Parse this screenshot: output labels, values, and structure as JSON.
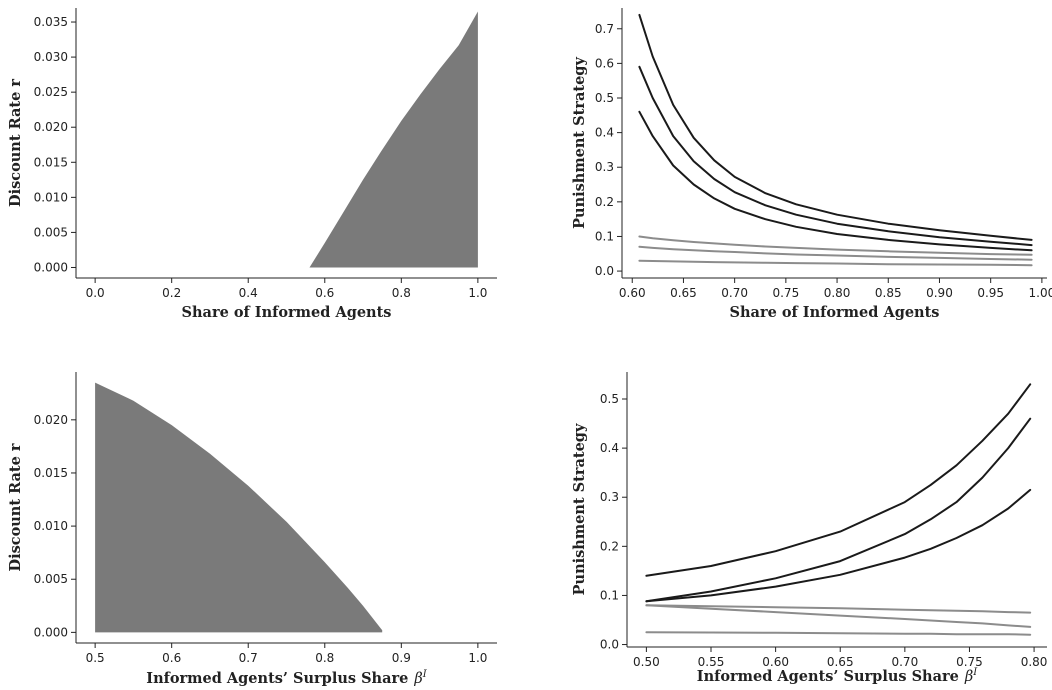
{
  "chart_data": [
    {
      "type": "area",
      "xlabel": "Share of Informed Agents",
      "ylabel": "Discount Rate r",
      "xlim": [
        -0.05,
        1.05
      ],
      "ylim": [
        -0.0015,
        0.037
      ],
      "xticks": [
        0.0,
        0.2,
        0.4,
        0.6,
        0.8,
        1.0
      ],
      "xtick_labels": [
        "0.0",
        "0.2",
        "0.4",
        "0.6",
        "0.8",
        "1.0"
      ],
      "yticks": [
        0.0,
        0.005,
        0.01,
        0.015,
        0.02,
        0.025,
        0.03,
        0.035
      ],
      "ytick_labels": [
        "0.000",
        "0.005",
        "0.010",
        "0.015",
        "0.020",
        "0.025",
        "0.030",
        "0.035"
      ],
      "fill_color": "#7a7a7a",
      "region": {
        "x": [
          0.56,
          0.6,
          0.65,
          0.7,
          0.75,
          0.8,
          0.85,
          0.9,
          0.95,
          1.0,
          1.0
        ],
        "upper": [
          0.0,
          0.0035,
          0.008,
          0.0125,
          0.0168,
          0.0209,
          0.0247,
          0.0283,
          0.0317,
          0.0365,
          0.0
        ],
        "lower": 0.0
      }
    },
    {
      "type": "line",
      "xlabel": "Share of Informed Agents",
      "ylabel": "Punishment Strategy",
      "xlim": [
        0.59,
        1.005
      ],
      "ylim": [
        -0.02,
        0.76
      ],
      "xticks": [
        0.6,
        0.65,
        0.7,
        0.75,
        0.8,
        0.85,
        0.9,
        0.95,
        1.0
      ],
      "xtick_labels": [
        "0.60",
        "0.65",
        "0.70",
        "0.75",
        "0.80",
        "0.85",
        "0.90",
        "0.95",
        "1.00"
      ],
      "yticks": [
        0.0,
        0.1,
        0.2,
        0.3,
        0.4,
        0.5,
        0.6,
        0.7
      ],
      "ytick_labels": [
        "0.0",
        "0.1",
        "0.2",
        "0.3",
        "0.4",
        "0.5",
        "0.6",
        "0.7"
      ],
      "x": [
        0.607,
        0.62,
        0.64,
        0.66,
        0.68,
        0.7,
        0.73,
        0.76,
        0.8,
        0.85,
        0.9,
        0.95,
        0.99
      ],
      "series": [
        {
          "color": "#1a1a1a",
          "values": [
            0.74,
            0.62,
            0.48,
            0.385,
            0.32,
            0.272,
            0.225,
            0.193,
            0.163,
            0.137,
            0.118,
            0.102,
            0.09
          ]
        },
        {
          "color": "#1a1a1a",
          "values": [
            0.59,
            0.5,
            0.39,
            0.317,
            0.266,
            0.228,
            0.19,
            0.163,
            0.137,
            0.115,
            0.098,
            0.085,
            0.075
          ]
        },
        {
          "color": "#1a1a1a",
          "values": [
            0.46,
            0.39,
            0.305,
            0.25,
            0.21,
            0.18,
            0.15,
            0.128,
            0.107,
            0.09,
            0.077,
            0.067,
            0.06
          ]
        },
        {
          "color": "#8c8c8c",
          "values": [
            0.1,
            0.095,
            0.089,
            0.084,
            0.08,
            0.076,
            0.071,
            0.067,
            0.062,
            0.057,
            0.053,
            0.049,
            0.047
          ]
        },
        {
          "color": "#8c8c8c",
          "values": [
            0.07,
            0.067,
            0.063,
            0.06,
            0.057,
            0.055,
            0.051,
            0.048,
            0.045,
            0.041,
            0.038,
            0.035,
            0.033
          ]
        },
        {
          "color": "#8c8c8c",
          "values": [
            0.03,
            0.029,
            0.028,
            0.027,
            0.026,
            0.025,
            0.024,
            0.023,
            0.022,
            0.02,
            0.019,
            0.018,
            0.017
          ]
        }
      ]
    },
    {
      "type": "area",
      "xlabel": "Informed Agents’ Surplus Share",
      "xlabel_symbol": "β",
      "xlabel_superscript": "I",
      "ylabel": "Discount Rate r",
      "xlim": [
        0.475,
        1.025
      ],
      "ylim": [
        -0.001,
        0.0245
      ],
      "xticks": [
        0.5,
        0.6,
        0.7,
        0.8,
        0.9,
        1.0
      ],
      "xtick_labels": [
        "0.5",
        "0.6",
        "0.7",
        "0.8",
        "0.9",
        "1.0"
      ],
      "yticks": [
        0.0,
        0.005,
        0.01,
        0.015,
        0.02
      ],
      "ytick_labels": [
        "0.000",
        "0.005",
        "0.010",
        "0.015",
        "0.020"
      ],
      "fill_color": "#7a7a7a",
      "region": {
        "x": [
          0.5,
          0.5,
          0.55,
          0.6,
          0.65,
          0.7,
          0.75,
          0.8,
          0.83,
          0.85,
          0.875,
          0.875
        ],
        "upper": [
          0.0,
          0.0235,
          0.0218,
          0.0195,
          0.0168,
          0.0138,
          0.0104,
          0.0066,
          0.0042,
          0.0025,
          0.0002,
          0.0
        ],
        "lower": 0.0
      }
    },
    {
      "type": "line",
      "xlabel": "Informed Agents’ Surplus Share",
      "xlabel_symbol": "β",
      "xlabel_superscript": "I",
      "ylabel": "Punishment Strategy",
      "xlim": [
        0.485,
        0.81
      ],
      "ylim": [
        -0.005,
        0.555
      ],
      "xticks": [
        0.5,
        0.55,
        0.6,
        0.65,
        0.7,
        0.75,
        0.8
      ],
      "xtick_labels": [
        "0.50",
        "0.55",
        "0.60",
        "0.65",
        "0.70",
        "0.75",
        "0.80"
      ],
      "yticks": [
        0.0,
        0.1,
        0.2,
        0.3,
        0.4,
        0.5
      ],
      "ytick_labels": [
        "0.0",
        "0.1",
        "0.2",
        "0.3",
        "0.4",
        "0.5"
      ],
      "x": [
        0.5,
        0.55,
        0.6,
        0.65,
        0.7,
        0.72,
        0.74,
        0.76,
        0.78,
        0.797
      ],
      "series": [
        {
          "color": "#1a1a1a",
          "values": [
            0.14,
            0.16,
            0.19,
            0.23,
            0.29,
            0.325,
            0.365,
            0.415,
            0.47,
            0.53
          ]
        },
        {
          "color": "#1a1a1a",
          "values": [
            0.088,
            0.108,
            0.135,
            0.17,
            0.225,
            0.255,
            0.29,
            0.34,
            0.4,
            0.46
          ]
        },
        {
          "color": "#1a1a1a",
          "values": [
            0.088,
            0.1,
            0.118,
            0.142,
            0.177,
            0.195,
            0.217,
            0.243,
            0.277,
            0.315
          ]
        },
        {
          "color": "#8c8c8c",
          "values": [
            0.08,
            0.078,
            0.076,
            0.074,
            0.071,
            0.07,
            0.069,
            0.068,
            0.066,
            0.065
          ]
        },
        {
          "color": "#8c8c8c",
          "values": [
            0.08,
            0.073,
            0.066,
            0.059,
            0.052,
            0.049,
            0.046,
            0.043,
            0.039,
            0.036
          ]
        },
        {
          "color": "#8c8c8c",
          "values": [
            0.025,
            0.0245,
            0.024,
            0.023,
            0.022,
            0.022,
            0.021,
            0.021,
            0.021,
            0.02
          ]
        }
      ]
    }
  ]
}
